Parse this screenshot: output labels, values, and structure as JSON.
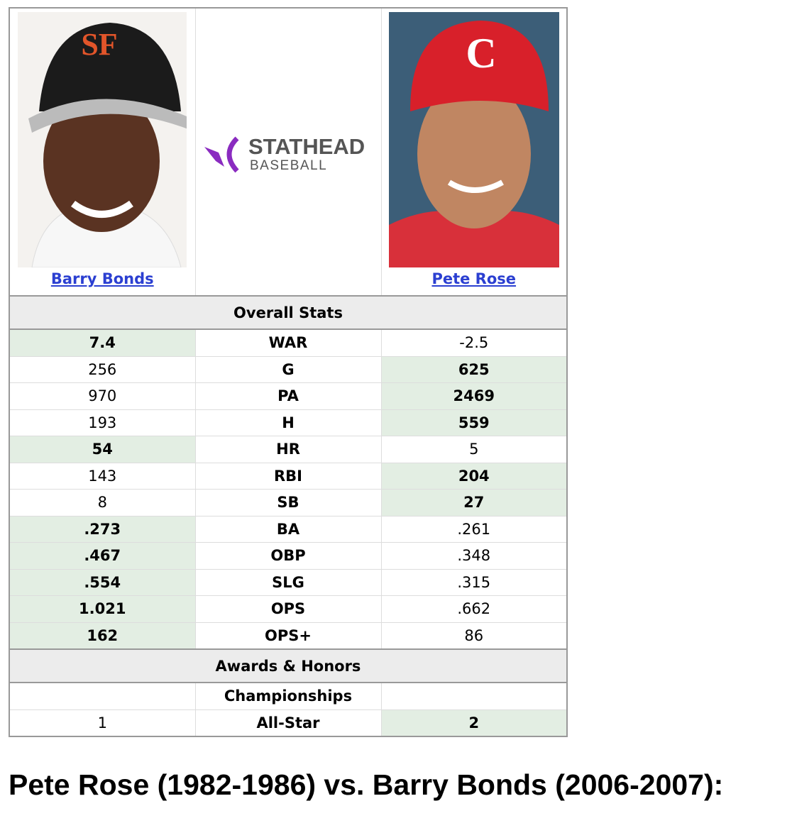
{
  "players": [
    {
      "name": "Barry Bonds"
    },
    {
      "name": "Pete Rose"
    }
  ],
  "logo": {
    "brand": "STATHEAD",
    "sport": "BASEBALL"
  },
  "sections": [
    {
      "title": "Overall Stats",
      "rows": [
        {
          "left": "7.4",
          "stat": "WAR",
          "right": "-2.5",
          "highlight": "left"
        },
        {
          "left": "256",
          "stat": "G",
          "right": "625",
          "highlight": "right"
        },
        {
          "left": "970",
          "stat": "PA",
          "right": "2469",
          "highlight": "right"
        },
        {
          "left": "193",
          "stat": "H",
          "right": "559",
          "highlight": "right"
        },
        {
          "left": "54",
          "stat": "HR",
          "right": "5",
          "highlight": "left"
        },
        {
          "left": "143",
          "stat": "RBI",
          "right": "204",
          "highlight": "right"
        },
        {
          "left": "8",
          "stat": "SB",
          "right": "27",
          "highlight": "right"
        },
        {
          "left": ".273",
          "stat": "BA",
          "right": ".261",
          "highlight": "left"
        },
        {
          "left": ".467",
          "stat": "OBP",
          "right": ".348",
          "highlight": "left"
        },
        {
          "left": ".554",
          "stat": "SLG",
          "right": ".315",
          "highlight": "left"
        },
        {
          "left": "1.021",
          "stat": "OPS",
          "right": ".662",
          "highlight": "left"
        },
        {
          "left": "162",
          "stat": "OPS+",
          "right": "86",
          "highlight": "left"
        }
      ]
    },
    {
      "title": "Awards & Honors",
      "rows": [
        {
          "stat": "Championships"
        },
        {
          "left": "1",
          "stat": "All-Star",
          "right": "2",
          "highlight": "right"
        }
      ]
    }
  ],
  "caption": "Pete Rose (1982-1986) vs. Barry Bonds (2006-2007):"
}
